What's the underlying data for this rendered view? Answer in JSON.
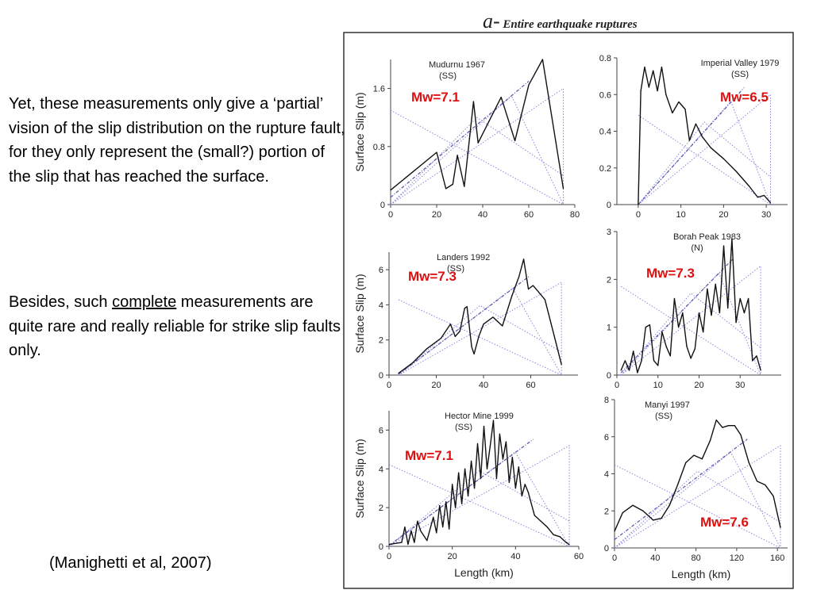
{
  "text": {
    "para1": "Yet, these measurements only give a ‘partial’ vision of the slip distribution on the rupture fault, for they only represent the (small?) portion of the slip that has reached the surface.",
    "para2_before": "Besides, such ",
    "para2_underlined": "complete",
    "para2_after": " measurements are quite rare and really reliable for strike slip faults only.",
    "citation": "(Manighetti et al, 2007)",
    "figure_prefix": "a-",
    "figure_title": "Entire earthquake ruptures"
  },
  "colors": {
    "magnitude_label": "#dd1111",
    "slip_curve": "#111111",
    "model_lines": "#8888dd"
  },
  "chart_data": [
    {
      "type": "line",
      "name": "Mudurnu 1967",
      "fault_type": "(SS)",
      "magnitude": "Mw=7.1",
      "xlim": [
        0,
        80
      ],
      "ylim": [
        0,
        2.0
      ],
      "xticks": [
        0,
        20,
        40,
        60,
        80
      ],
      "yticks": [
        0,
        0.8,
        1.6
      ],
      "xlabel": "",
      "ylabel": "Surface Slip (m)",
      "x": [
        0,
        20,
        24,
        27,
        29,
        32,
        36,
        38,
        48,
        54,
        60,
        66,
        75
      ],
      "y": [
        0.2,
        0.72,
        0.22,
        0.28,
        0.68,
        0.25,
        1.42,
        0.85,
        1.48,
        0.88,
        1.65,
        2.0,
        0.22
      ]
    },
    {
      "type": "line",
      "name": "Imperial Valley 1979",
      "fault_type": "(SS)",
      "magnitude": "Mw=6.5",
      "xlim": [
        -5,
        35
      ],
      "ylim": [
        0,
        0.8
      ],
      "xticks": [
        0,
        10,
        20,
        30
      ],
      "yticks": [
        0,
        0.2,
        0.4,
        0.6,
        0.8
      ],
      "xlabel": "",
      "ylabel": "",
      "x": [
        0,
        0.6,
        1.5,
        2.5,
        3.5,
        4.5,
        5.5,
        6.5,
        8,
        9.5,
        11,
        12,
        13.5,
        15,
        17,
        20,
        23,
        26,
        28,
        29.5,
        31
      ],
      "y": [
        0,
        0.62,
        0.75,
        0.64,
        0.73,
        0.62,
        0.75,
        0.6,
        0.5,
        0.56,
        0.52,
        0.35,
        0.44,
        0.37,
        0.31,
        0.25,
        0.18,
        0.1,
        0.04,
        0.05,
        0.01
      ]
    },
    {
      "type": "line",
      "name": "Landers 1992",
      "fault_type": "(SS)",
      "magnitude": "Mw=7.3",
      "xlim": [
        0,
        80
      ],
      "ylim": [
        0,
        7
      ],
      "xticks": [
        0,
        20,
        40,
        60
      ],
      "yticks": [
        0,
        2,
        4,
        6
      ],
      "xlabel": "",
      "ylabel": "Surface Slip (m)",
      "x": [
        4,
        10,
        16,
        22,
        26,
        28,
        30,
        32,
        33,
        35,
        36,
        38,
        40,
        44,
        48,
        52,
        55,
        57,
        59,
        61,
        66,
        70,
        73
      ],
      "y": [
        0.1,
        0.7,
        1.5,
        2.1,
        2.9,
        2.2,
        2.5,
        3.8,
        3.9,
        1.6,
        1.2,
        2.2,
        2.9,
        3.3,
        2.8,
        4.5,
        5.6,
        6.6,
        4.9,
        5.1,
        4.3,
        2.2,
        0.6
      ]
    },
    {
      "type": "line",
      "name": "Borah Peak 1983",
      "fault_type": "(N)",
      "magnitude": "Mw=7.3",
      "xlim": [
        0,
        40
      ],
      "ylim": [
        0,
        3
      ],
      "xticks": [
        0,
        10,
        20,
        30
      ],
      "yticks": [
        0,
        1,
        2,
        3
      ],
      "xlabel": "",
      "ylabel": "",
      "x": [
        1,
        2,
        3,
        4,
        5,
        6,
        7,
        8,
        9,
        10,
        11,
        12,
        13,
        14,
        15,
        16,
        17,
        18,
        19,
        20,
        21,
        22,
        23,
        24,
        25,
        26,
        27,
        28,
        29,
        30,
        31,
        32,
        33,
        34,
        35
      ],
      "y": [
        0.1,
        0.3,
        0.1,
        0.5,
        0.05,
        0.3,
        1.0,
        1.05,
        0.3,
        0.2,
        0.9,
        0.6,
        0.4,
        1.6,
        1.0,
        1.3,
        0.6,
        0.35,
        0.55,
        1.3,
        0.9,
        1.8,
        1.25,
        1.9,
        1.3,
        2.7,
        1.4,
        2.85,
        1.1,
        1.6,
        1.3,
        1.6,
        0.3,
        0.4,
        0.1
      ]
    },
    {
      "type": "line",
      "name": "Hector Mine 1999",
      "fault_type": "(SS)",
      "magnitude": "Mw=7.1",
      "xlim": [
        0,
        60
      ],
      "ylim": [
        0,
        7
      ],
      "xticks": [
        0,
        20,
        40,
        60
      ],
      "yticks": [
        0,
        2,
        4,
        6
      ],
      "xlabel": "Length (km)",
      "ylabel": "Surface Slip (m)",
      "x": [
        0,
        4,
        5,
        6,
        7,
        8,
        9,
        10,
        12,
        14,
        15,
        16,
        17,
        18,
        19,
        20,
        21,
        22,
        23,
        24,
        25,
        26,
        27,
        28,
        29,
        30,
        31,
        32,
        33,
        34,
        35,
        36,
        37,
        38,
        39,
        40,
        41,
        42,
        43,
        44,
        46,
        48,
        50,
        52,
        54,
        56,
        57
      ],
      "y": [
        0.1,
        0.2,
        1.0,
        0.1,
        0.8,
        0.2,
        1.3,
        0.8,
        0.3,
        1.5,
        0.7,
        2.1,
        1.0,
        2.3,
        0.9,
        3.2,
        2.0,
        3.8,
        2.2,
        4.0,
        2.6,
        4.4,
        3.0,
        5.3,
        3.5,
        6.2,
        4.0,
        5.2,
        6.5,
        3.5,
        5.8,
        4.5,
        5.4,
        3.3,
        4.6,
        3.0,
        4.1,
        2.6,
        3.2,
        2.8,
        1.6,
        1.3,
        1.0,
        0.6,
        0.5,
        0.2,
        0.1
      ]
    },
    {
      "type": "line",
      "name": "Manyi 1997",
      "fault_type": "(SS)",
      "magnitude": "Mw=7.6",
      "xlim": [
        0,
        170
      ],
      "ylim": [
        0,
        8
      ],
      "xticks": [
        0,
        40,
        80,
        120,
        160
      ],
      "yticks": [
        0,
        2,
        4,
        6,
        8
      ],
      "xlabel": "Length (km)",
      "ylabel": "",
      "x": [
        0,
        8,
        18,
        28,
        38,
        46,
        54,
        62,
        70,
        78,
        86,
        94,
        100,
        106,
        112,
        118,
        124,
        132,
        140,
        148,
        156,
        163
      ],
      "y": [
        0.9,
        1.9,
        2.3,
        2.0,
        1.5,
        1.6,
        2.3,
        3.4,
        4.6,
        5.0,
        4.8,
        5.8,
        6.9,
        6.5,
        6.6,
        6.6,
        6.1,
        4.6,
        3.6,
        3.4,
        2.8,
        1.1
      ]
    }
  ]
}
